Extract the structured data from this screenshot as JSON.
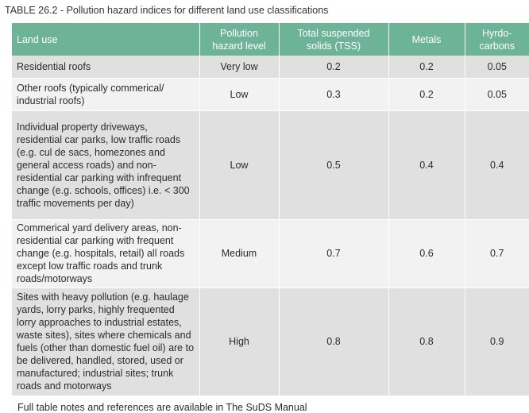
{
  "caption": "TABLE 26.2 - Pollution hazard indices for different land use classifications",
  "table": {
    "headers": [
      "Land use",
      "Pollution hazard level",
      "Total suspended solids (TSS)",
      "Metals",
      "Hyrdo- carbons"
    ],
    "rows": [
      [
        "Residential roofs",
        "Very low",
        "0.2",
        "0.2",
        "0.05"
      ],
      [
        "Other roofs (typically commerical/ industrial roofs)",
        "Low",
        "0.3",
        "0.2",
        "0.05"
      ],
      [
        "Individual property driveways, residential car parks, low traffic roads (e.g. cul de sacs, homezones and general access roads) and non-residential car parking with infrequent change (e.g. schools, offices) i.e. < 300 traffic movements per day)",
        "Low",
        "0.5",
        "0.4",
        "0.4"
      ],
      [
        "Commerical yard delivery areas, non-residential car parking with frequent change (e.g. hospitals, retail) all roads except low traffic roads and trunk roads/motorways",
        "Medium",
        "0.7",
        "0.6",
        "0.7"
      ],
      [
        "Sites with heavy pollution (e.g. haulage yards, lorry parks, highly frequented lorry approaches to industrial estates, waste sites), sites where chemicals and fuels (other than domestic fuel oil) are to be delivered, handled, stored, used or manufactured; industrial sites; trunk roads and motorways",
        "High",
        "0.8",
        "0.8",
        "0.9"
      ]
    ]
  },
  "note": "Full table notes and references are available in The SuDS Manual",
  "colors": {
    "header_bg": "#6db398",
    "row_shade": "#e0e0e0",
    "row_light": "#f2f2f2"
  }
}
